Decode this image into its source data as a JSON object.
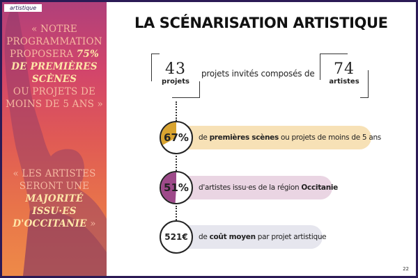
{
  "section_tag": "artistique",
  "title": "LA SCÉNARISATION ARTISTIQUE",
  "quote1": {
    "lines": [
      "« NOTRE",
      "PROGRAMMATION",
      "PROPOSERA"
    ],
    "highlight_inline": "75%",
    "highlight_lines": [
      "DE PREMIÈRES",
      "SCÈNES"
    ],
    "tail_lines": [
      "OU PROJETS DE",
      "MOINS DE 5 ANS »"
    ]
  },
  "quote2": {
    "lines": [
      "« LES ARTISTES",
      "SERONT UNE"
    ],
    "highlight_lines": [
      "MAJORITÉ",
      "ISSU·ES",
      "D'OCCITANIE"
    ],
    "close": "»"
  },
  "stats_top": {
    "projects_value": "43",
    "projects_unit": "projets",
    "connector_text": "projets invités composés de",
    "artists_value": "74",
    "artists_unit": "artistes"
  },
  "rows": [
    {
      "value": "67%",
      "percent_fill": 67,
      "color": "#d9a430",
      "text_bold": "premières scènes",
      "text_before": "de ",
      "text_after": " ou projets de moins de 5 ans"
    },
    {
      "value": "51%",
      "percent_fill": 51,
      "color": "#9e4a8a",
      "text_before": "d'artistes issu·es de la région ",
      "text_bold": "Occitanie",
      "text_after": ""
    },
    {
      "value": "521€",
      "text_before": "de ",
      "text_bold": "coût moyen",
      "text_after": " par projet artistique"
    }
  ],
  "page_number": "22",
  "colors": {
    "banner_top": "#b0407a",
    "banner_bottom": "#ee8a48",
    "quote_text": "#f6b8a0",
    "quote_highlight": "#ffe6a8",
    "border": "#2b1a55"
  }
}
